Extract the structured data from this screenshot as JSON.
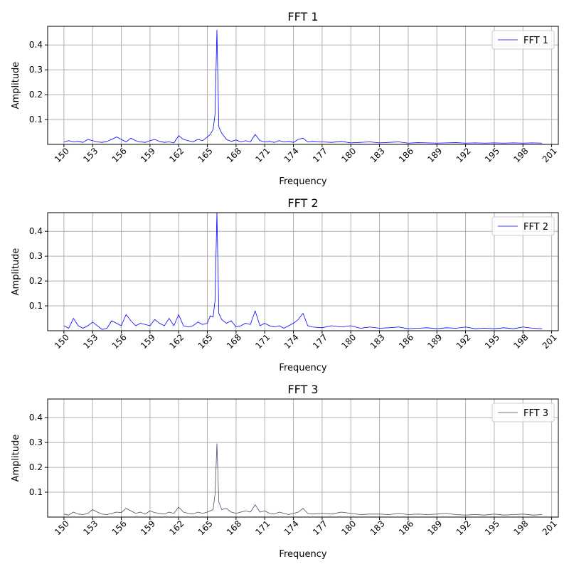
{
  "chart_data": [
    {
      "type": "line",
      "title": "FFT 1",
      "xlabel": "Frequency",
      "ylabel": "Amplitude",
      "xlim": [
        148.3,
        201.7
      ],
      "ylim": [
        0,
        0.475
      ],
      "x_ticks": [
        150,
        153,
        156,
        159,
        162,
        165,
        168,
        171,
        174,
        177,
        180,
        183,
        186,
        189,
        192,
        195,
        198,
        201
      ],
      "y_ticks": [
        0.1,
        0.2,
        0.3,
        0.4
      ],
      "grid": true,
      "legend_position": "top-right",
      "series": [
        {
          "name": "FFT 1",
          "color": "#0000ff",
          "x": [
            150,
            150.5,
            151,
            151.5,
            152,
            152.5,
            153,
            153.5,
            154,
            154.5,
            155,
            155.5,
            156,
            156.5,
            157,
            157.5,
            158,
            158.5,
            159,
            159.5,
            160,
            160.5,
            161,
            161.5,
            162,
            162.5,
            163,
            163.5,
            164,
            164.5,
            165,
            165.3,
            165.6,
            165.8,
            166,
            166.2,
            166.5,
            167,
            167.5,
            168,
            168.5,
            169,
            169.5,
            170,
            170.5,
            171,
            171.5,
            172,
            172.5,
            173,
            173.5,
            174,
            174.5,
            175,
            175.5,
            176,
            177,
            178,
            179,
            180,
            181,
            182,
            183,
            184,
            185,
            186,
            187,
            188,
            189,
            190,
            191,
            192,
            193,
            194,
            195,
            196,
            197,
            198,
            199,
            200
          ],
          "values": [
            0.01,
            0.015,
            0.01,
            0.012,
            0.008,
            0.02,
            0.015,
            0.01,
            0.008,
            0.012,
            0.02,
            0.03,
            0.02,
            0.01,
            0.025,
            0.015,
            0.01,
            0.008,
            0.015,
            0.02,
            0.012,
            0.008,
            0.01,
            0.006,
            0.035,
            0.02,
            0.015,
            0.01,
            0.02,
            0.015,
            0.03,
            0.04,
            0.06,
            0.12,
            0.46,
            0.07,
            0.045,
            0.02,
            0.012,
            0.018,
            0.01,
            0.015,
            0.01,
            0.04,
            0.015,
            0.01,
            0.012,
            0.008,
            0.015,
            0.01,
            0.012,
            0.008,
            0.02,
            0.025,
            0.01,
            0.012,
            0.01,
            0.008,
            0.012,
            0.006,
            0.008,
            0.01,
            0.006,
            0.008,
            0.01,
            0.005,
            0.007,
            0.006,
            0.005,
            0.006,
            0.007,
            0.005,
            0.006,
            0.005,
            0.006,
            0.005,
            0.006,
            0.005,
            0.006,
            0.005
          ]
        }
      ]
    },
    {
      "type": "line",
      "title": "FFT 2",
      "xlabel": "Frequency",
      "ylabel": "Amplitude",
      "xlim": [
        148.3,
        201.7
      ],
      "ylim": [
        0,
        0.475
      ],
      "x_ticks": [
        150,
        153,
        156,
        159,
        162,
        165,
        168,
        171,
        174,
        177,
        180,
        183,
        186,
        189,
        192,
        195,
        198,
        201
      ],
      "y_ticks": [
        0.1,
        0.2,
        0.3,
        0.4
      ],
      "grid": true,
      "legend_position": "top-right",
      "series": [
        {
          "name": "FFT 2",
          "color": "#0000ff",
          "x": [
            150,
            150.5,
            151,
            151.5,
            152,
            152.5,
            153,
            153.5,
            154,
            154.5,
            155,
            155.5,
            156,
            156.5,
            157,
            157.5,
            158,
            158.5,
            159,
            159.5,
            160,
            160.5,
            161,
            161.5,
            162,
            162.5,
            163,
            163.5,
            164,
            164.5,
            165,
            165.3,
            165.6,
            165.8,
            166,
            166.2,
            166.5,
            167,
            167.5,
            168,
            168.5,
            169,
            169.5,
            170,
            170.5,
            171,
            171.5,
            172,
            172.5,
            173,
            173.5,
            174,
            174.5,
            175,
            175.5,
            176,
            177,
            178,
            179,
            180,
            181,
            182,
            183,
            184,
            185,
            186,
            187,
            188,
            189,
            190,
            191,
            192,
            193,
            194,
            195,
            196,
            197,
            198,
            199,
            200
          ],
          "values": [
            0.02,
            0.01,
            0.05,
            0.02,
            0.01,
            0.02,
            0.035,
            0.02,
            0.005,
            0.01,
            0.04,
            0.03,
            0.02,
            0.065,
            0.04,
            0.02,
            0.03,
            0.025,
            0.02,
            0.045,
            0.03,
            0.02,
            0.05,
            0.02,
            0.065,
            0.02,
            0.015,
            0.02,
            0.035,
            0.025,
            0.03,
            0.06,
            0.055,
            0.12,
            0.475,
            0.07,
            0.045,
            0.03,
            0.04,
            0.015,
            0.02,
            0.03,
            0.025,
            0.08,
            0.02,
            0.03,
            0.02,
            0.015,
            0.02,
            0.01,
            0.02,
            0.03,
            0.045,
            0.07,
            0.02,
            0.015,
            0.012,
            0.02,
            0.015,
            0.02,
            0.01,
            0.015,
            0.01,
            0.012,
            0.015,
            0.008,
            0.01,
            0.012,
            0.008,
            0.012,
            0.01,
            0.015,
            0.008,
            0.01,
            0.008,
            0.012,
            0.008,
            0.015,
            0.01,
            0.008
          ]
        }
      ]
    },
    {
      "type": "line",
      "title": "FFT 3",
      "xlabel": "Frequency",
      "ylabel": "Amplitude",
      "xlim": [
        148.3,
        201.7
      ],
      "ylim": [
        0,
        0.475
      ],
      "x_ticks": [
        150,
        153,
        156,
        159,
        162,
        165,
        168,
        171,
        174,
        177,
        180,
        183,
        186,
        189,
        192,
        195,
        198,
        201
      ],
      "y_ticks": [
        0.1,
        0.2,
        0.3,
        0.4
      ],
      "grid": true,
      "legend_position": "top-right",
      "series": [
        {
          "name": "FFT 3",
          "color": "#4a4a6a",
          "x": [
            150,
            150.5,
            151,
            151.5,
            152,
            152.5,
            153,
            153.5,
            154,
            154.5,
            155,
            155.5,
            156,
            156.5,
            157,
            157.5,
            158,
            158.5,
            159,
            159.5,
            160,
            160.5,
            161,
            161.5,
            162,
            162.5,
            163,
            163.5,
            164,
            164.5,
            165,
            165.3,
            165.6,
            165.8,
            166,
            166.2,
            166.5,
            167,
            167.5,
            168,
            168.5,
            169,
            169.5,
            170,
            170.5,
            171,
            171.5,
            172,
            172.5,
            173,
            173.5,
            174,
            174.5,
            175,
            175.5,
            176,
            177,
            178,
            179,
            180,
            181,
            182,
            183,
            184,
            185,
            186,
            187,
            188,
            189,
            190,
            191,
            192,
            193,
            194,
            195,
            196,
            197,
            198,
            199,
            200
          ],
          "values": [
            0.012,
            0.008,
            0.02,
            0.012,
            0.01,
            0.015,
            0.03,
            0.02,
            0.012,
            0.01,
            0.015,
            0.02,
            0.018,
            0.035,
            0.025,
            0.015,
            0.02,
            0.012,
            0.025,
            0.018,
            0.015,
            0.012,
            0.02,
            0.015,
            0.04,
            0.02,
            0.015,
            0.012,
            0.02,
            0.015,
            0.02,
            0.025,
            0.03,
            0.09,
            0.295,
            0.06,
            0.03,
            0.035,
            0.02,
            0.015,
            0.02,
            0.025,
            0.02,
            0.05,
            0.02,
            0.025,
            0.015,
            0.012,
            0.02,
            0.015,
            0.01,
            0.015,
            0.02,
            0.035,
            0.015,
            0.012,
            0.015,
            0.012,
            0.02,
            0.015,
            0.01,
            0.012,
            0.012,
            0.01,
            0.015,
            0.01,
            0.012,
            0.01,
            0.012,
            0.015,
            0.01,
            0.008,
            0.01,
            0.008,
            0.012,
            0.008,
            0.01,
            0.012,
            0.008,
            0.01
          ]
        }
      ]
    }
  ]
}
